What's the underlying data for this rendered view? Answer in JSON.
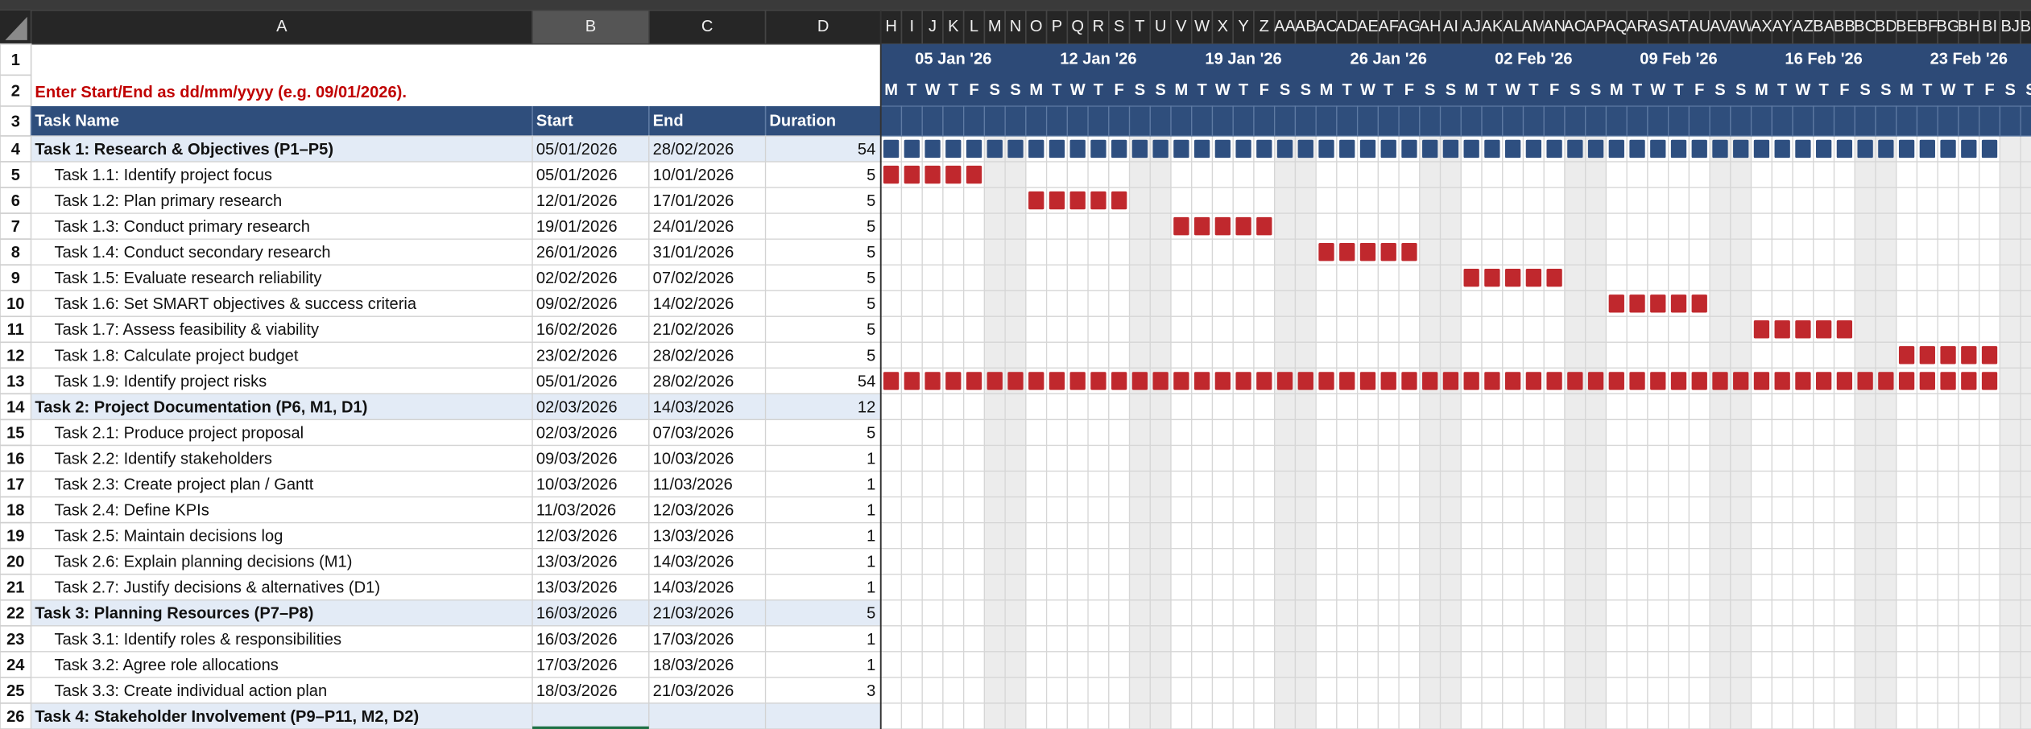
{
  "column_headers": [
    "A",
    "B",
    "C",
    "D"
  ],
  "timeline_columns": [
    "H",
    "I",
    "J",
    "K",
    "L",
    "M",
    "N",
    "O",
    "P",
    "Q",
    "R",
    "S",
    "T",
    "U",
    "V",
    "W",
    "X",
    "Y",
    "Z",
    "AA",
    "AB",
    "AC",
    "AD",
    "AE",
    "AF",
    "AG",
    "AH",
    "AI",
    "AJ",
    "AK",
    "AL",
    "AM",
    "AN",
    "AO",
    "AP",
    "AQ",
    "AR",
    "AS",
    "AT",
    "AU",
    "AV",
    "AW",
    "AX",
    "AY",
    "AZ",
    "BA",
    "BB",
    "BC",
    "BD",
    "BE",
    "BF",
    "BG",
    "BH",
    "BI",
    "BJ",
    "BK"
  ],
  "row_numbers": [
    1,
    2,
    3,
    4,
    5,
    6,
    7,
    8,
    9,
    10,
    11,
    12,
    13,
    14,
    15,
    16,
    17,
    18,
    19,
    20,
    21,
    22,
    23,
    24,
    25,
    26
  ],
  "instruction": "Enter Start/End as dd/mm/yyyy (e.g. 09/01/2026).",
  "weeks": [
    "05 Jan '26",
    "12 Jan '26",
    "19 Jan '26",
    "26 Jan '26",
    "02 Feb '26",
    "09 Feb '26",
    "16 Feb '26",
    "23 Feb '26"
  ],
  "weekdays": [
    "M",
    "T",
    "W",
    "T",
    "F",
    "S",
    "S"
  ],
  "table": {
    "header": [
      "Task Name",
      "Start",
      "End",
      "Duration"
    ],
    "rows": [
      {
        "name": "Task 1: Research & Objectives (P1–P5)",
        "start": "05/01/2026",
        "end": "28/02/2026",
        "duration": 54,
        "summary": true
      },
      {
        "name": "Task 1.1: Identify project focus",
        "start": "05/01/2026",
        "end": "10/01/2026",
        "duration": 5
      },
      {
        "name": "Task 1.2: Plan primary research",
        "start": "12/01/2026",
        "end": "17/01/2026",
        "duration": 5
      },
      {
        "name": "Task 1.3: Conduct primary research",
        "start": "19/01/2026",
        "end": "24/01/2026",
        "duration": 5
      },
      {
        "name": "Task 1.4: Conduct secondary research",
        "start": "26/01/2026",
        "end": "31/01/2026",
        "duration": 5
      },
      {
        "name": "Task 1.5: Evaluate research reliability",
        "start": "02/02/2026",
        "end": "07/02/2026",
        "duration": 5
      },
      {
        "name": "Task 1.6: Set SMART objectives & success criteria",
        "start": "09/02/2026",
        "end": "14/02/2026",
        "duration": 5
      },
      {
        "name": "Task 1.7: Assess feasibility & viability",
        "start": "16/02/2026",
        "end": "21/02/2026",
        "duration": 5
      },
      {
        "name": "Task 1.8: Calculate project budget",
        "start": "23/02/2026",
        "end": "28/02/2026",
        "duration": 5
      },
      {
        "name": "Task 1.9: Identify project risks",
        "start": "05/01/2026",
        "end": "28/02/2026",
        "duration": 54
      },
      {
        "name": "Task 2: Project Documentation (P6, M1, D1)",
        "start": "02/03/2026",
        "end": "14/03/2026",
        "duration": 12,
        "summary": true
      },
      {
        "name": "Task 2.1: Produce project proposal",
        "start": "02/03/2026",
        "end": "07/03/2026",
        "duration": 5
      },
      {
        "name": "Task 2.2: Identify stakeholders",
        "start": "09/03/2026",
        "end": "10/03/2026",
        "duration": 1
      },
      {
        "name": "Task 2.3: Create project plan / Gantt",
        "start": "10/03/2026",
        "end": "11/03/2026",
        "duration": 1
      },
      {
        "name": "Task 2.4: Define KPIs",
        "start": "11/03/2026",
        "end": "12/03/2026",
        "duration": 1
      },
      {
        "name": "Task 2.5: Maintain decisions log",
        "start": "12/03/2026",
        "end": "13/03/2026",
        "duration": 1
      },
      {
        "name": "Task 2.6: Explain planning decisions (M1)",
        "start": "13/03/2026",
        "end": "14/03/2026",
        "duration": 1
      },
      {
        "name": "Task 2.7: Justify decisions & alternatives (D1)",
        "start": "13/03/2026",
        "end": "14/03/2026",
        "duration": 1
      },
      {
        "name": "Task 3: Planning Resources (P7–P8)",
        "start": "16/03/2026",
        "end": "21/03/2026",
        "duration": 5,
        "summary": true
      },
      {
        "name": "Task 3.1: Identify roles & responsibilities",
        "start": "16/03/2026",
        "end": "17/03/2026",
        "duration": 1
      },
      {
        "name": "Task 3.2: Agree role allocations",
        "start": "17/03/2026",
        "end": "18/03/2026",
        "duration": 1
      },
      {
        "name": "Task 3.3: Create individual action plan",
        "start": "18/03/2026",
        "end": "21/03/2026",
        "duration": 3
      },
      {
        "name": "Task 4: Stakeholder Involvement (P9–P11, M2, D2)",
        "summary": true
      }
    ]
  }
}
